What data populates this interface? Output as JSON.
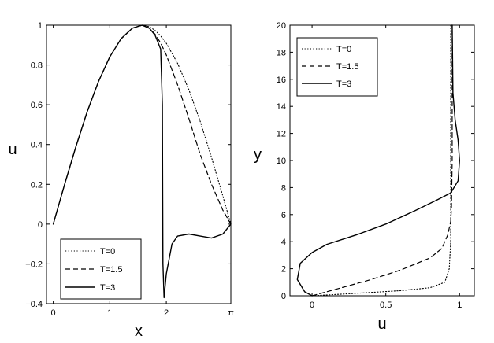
{
  "chart_data": [
    {
      "type": "line",
      "xlabel": "x",
      "ylabel": "u",
      "xlim": [
        -0.12,
        3.1416
      ],
      "ylim": [
        -0.4,
        1
      ],
      "xticks": [
        {
          "v": 0,
          "label": "0"
        },
        {
          "v": 1,
          "label": "1"
        },
        {
          "v": 2,
          "label": "2"
        },
        {
          "v": 3.1416,
          "label": "π"
        }
      ],
      "yticks": [
        {
          "v": -0.4,
          "label": "−0.4"
        },
        {
          "v": -0.2,
          "label": "−0.2"
        },
        {
          "v": 0,
          "label": "0"
        },
        {
          "v": 0.2,
          "label": "0.2"
        },
        {
          "v": 0.4,
          "label": "0.4"
        },
        {
          "v": 0.6,
          "label": "0.6"
        },
        {
          "v": 0.8,
          "label": "0.8"
        },
        {
          "v": 1,
          "label": "1"
        }
      ],
      "legend_position": "bottom-left",
      "series": [
        {
          "name": "T=0",
          "style": "dotted",
          "x": [
            0,
            0.2,
            0.4,
            0.6,
            0.8,
            1.0,
            1.2,
            1.4,
            1.57,
            1.7,
            1.8,
            1.9,
            2.0,
            2.2,
            2.4,
            2.6,
            2.8,
            3.0,
            3.1416
          ],
          "y": [
            0,
            0.199,
            0.389,
            0.565,
            0.717,
            0.841,
            0.932,
            0.985,
            1.0,
            0.992,
            0.974,
            0.946,
            0.909,
            0.808,
            0.675,
            0.516,
            0.335,
            0.141,
            0
          ]
        },
        {
          "name": "T=1.5",
          "style": "dashed",
          "x": [
            0,
            0.2,
            0.4,
            0.6,
            0.8,
            1.0,
            1.2,
            1.4,
            1.57,
            1.7,
            1.8,
            1.9,
            2.0,
            2.2,
            2.4,
            2.6,
            2.8,
            3.0,
            3.1416
          ],
          "y": [
            0,
            0.199,
            0.389,
            0.565,
            0.717,
            0.841,
            0.932,
            0.985,
            1.0,
            0.985,
            0.955,
            0.91,
            0.85,
            0.7,
            0.53,
            0.35,
            0.2,
            0.07,
            0
          ]
        },
        {
          "name": "T=3",
          "style": "solid",
          "x": [
            0,
            0.2,
            0.4,
            0.6,
            0.8,
            1.0,
            1.2,
            1.4,
            1.57,
            1.7,
            1.8,
            1.9,
            1.93,
            1.94,
            1.96,
            2.0,
            2.1,
            2.2,
            2.4,
            2.6,
            2.8,
            3.0,
            3.1416
          ],
          "y": [
            0,
            0.199,
            0.389,
            0.565,
            0.717,
            0.841,
            0.932,
            0.985,
            1.0,
            0.985,
            0.95,
            0.88,
            0.6,
            -0.2,
            -0.37,
            -0.25,
            -0.1,
            -0.06,
            -0.05,
            -0.06,
            -0.07,
            -0.05,
            0
          ]
        }
      ]
    },
    {
      "type": "line",
      "xlabel": "u",
      "ylabel": "y",
      "xlim": [
        -0.15,
        1.1
      ],
      "ylim": [
        0,
        20
      ],
      "xticks": [
        {
          "v": 0,
          "label": "0"
        },
        {
          "v": 0.5,
          "label": "0.5"
        },
        {
          "v": 1,
          "label": "1"
        }
      ],
      "yticks": [
        {
          "v": 0,
          "label": "0"
        },
        {
          "v": 2,
          "label": "2"
        },
        {
          "v": 4,
          "label": "4"
        },
        {
          "v": 6,
          "label": "6"
        },
        {
          "v": 8,
          "label": "8"
        },
        {
          "v": 10,
          "label": "10"
        },
        {
          "v": 12,
          "label": "12"
        },
        {
          "v": 14,
          "label": "14"
        },
        {
          "v": 16,
          "label": "16"
        },
        {
          "v": 18,
          "label": "18"
        },
        {
          "v": 20,
          "label": "20"
        }
      ],
      "legend_position": "top-left",
      "series": [
        {
          "name": "T=0",
          "style": "dotted",
          "x": [
            0,
            0.2,
            0.4,
            0.6,
            0.8,
            0.9,
            0.93,
            0.94,
            0.94,
            0.94
          ],
          "y": [
            0,
            0.12,
            0.25,
            0.38,
            0.6,
            1.0,
            2.0,
            4.0,
            10.0,
            20.0
          ]
        },
        {
          "name": "T=1.5",
          "style": "dashed",
          "x": [
            0,
            0.1,
            0.2,
            0.4,
            0.6,
            0.8,
            0.88,
            0.92,
            0.94,
            0.945,
            0.95,
            0.95
          ],
          "y": [
            0,
            0.3,
            0.6,
            1.2,
            1.9,
            2.8,
            3.5,
            4.5,
            5.5,
            6.5,
            10.0,
            20.0
          ]
        },
        {
          "name": "T=3",
          "style": "solid",
          "x": [
            0,
            -0.05,
            -0.1,
            -0.08,
            0.0,
            0.1,
            0.3,
            0.5,
            0.7,
            0.85,
            0.94,
            0.99,
            1.0,
            0.99,
            0.97,
            0.955,
            0.95
          ],
          "y": [
            0,
            0.3,
            1.2,
            2.4,
            3.2,
            3.8,
            4.5,
            5.3,
            6.3,
            7.1,
            7.6,
            8.5,
            10.0,
            11.5,
            13.0,
            15.0,
            20.0
          ]
        }
      ]
    }
  ]
}
